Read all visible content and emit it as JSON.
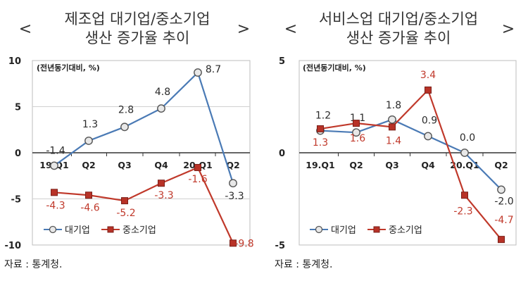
{
  "charts": [
    {
      "title_line1": "제조업 대기업/중소기업",
      "title_line2": "생산 증가율 추이",
      "bracket_left": "<",
      "bracket_right": ">",
      "unit_note": "(전년동기대비, %)",
      "source": "자료 : 통계청.",
      "legend": [
        "대기업",
        "중소기업"
      ]
    },
    {
      "title_line1": "서비스업 대기업/중소기업",
      "title_line2": "생산 증가율 추이",
      "bracket_left": "<",
      "bracket_right": ">",
      "unit_note": "(전년동기대비, %)",
      "source": "자료 : 통계청.",
      "legend": [
        "대기업",
        "중소기업"
      ]
    }
  ],
  "chart_data": [
    {
      "type": "line",
      "title": "제조업 대기업/중소기업 생산 증가율 추이",
      "ylabel": "(전년동기대비, %)",
      "categories": [
        "19.Q1",
        "Q2",
        "Q3",
        "Q4",
        "20.Q1",
        "Q2"
      ],
      "yticks": [
        10,
        5,
        0,
        -5,
        -10
      ],
      "ylim": [
        -10,
        10
      ],
      "series": [
        {
          "name": "대기업",
          "color": "#4a7ab5",
          "values": [
            -1.4,
            1.3,
            2.8,
            4.8,
            8.7,
            -3.3
          ],
          "labels": [
            "-1.4",
            "1.3",
            "2.8",
            "4.8",
            "8.7",
            "-3.3"
          ]
        },
        {
          "name": "중소기업",
          "color": "#c0392b",
          "values": [
            -4.3,
            -4.6,
            -5.2,
            -3.3,
            -1.6,
            -9.8
          ],
          "labels": [
            "-4.3",
            "-4.6",
            "-5.2",
            "-3.3",
            "-1.6",
            "-9.8"
          ]
        }
      ],
      "grid": true,
      "legend_position": "bottom-left"
    },
    {
      "type": "line",
      "title": "서비스업 대기업/중소기업 생산 증가율 추이",
      "ylabel": "(전년동기대비, %)",
      "categories": [
        "19.Q1",
        "Q2",
        "Q3",
        "Q4",
        "20.Q1",
        "Q2"
      ],
      "yticks": [
        5,
        0,
        -5
      ],
      "ylim": [
        -5,
        5
      ],
      "series": [
        {
          "name": "대기업",
          "color": "#4a7ab5",
          "values": [
            1.2,
            1.1,
            1.8,
            0.9,
            0.0,
            -2.0
          ],
          "labels": [
            "1.2",
            "1.1",
            "1.8",
            "0.9",
            "0.0",
            "-2.0"
          ]
        },
        {
          "name": "중소기업",
          "color": "#c0392b",
          "values": [
            1.3,
            1.6,
            1.4,
            3.4,
            -2.3,
            -4.7
          ],
          "labels": [
            "1.3",
            "1.6",
            "1.4",
            "3.4",
            "-2.3",
            "-4.7"
          ]
        }
      ],
      "grid": true,
      "legend_position": "bottom-left"
    }
  ]
}
